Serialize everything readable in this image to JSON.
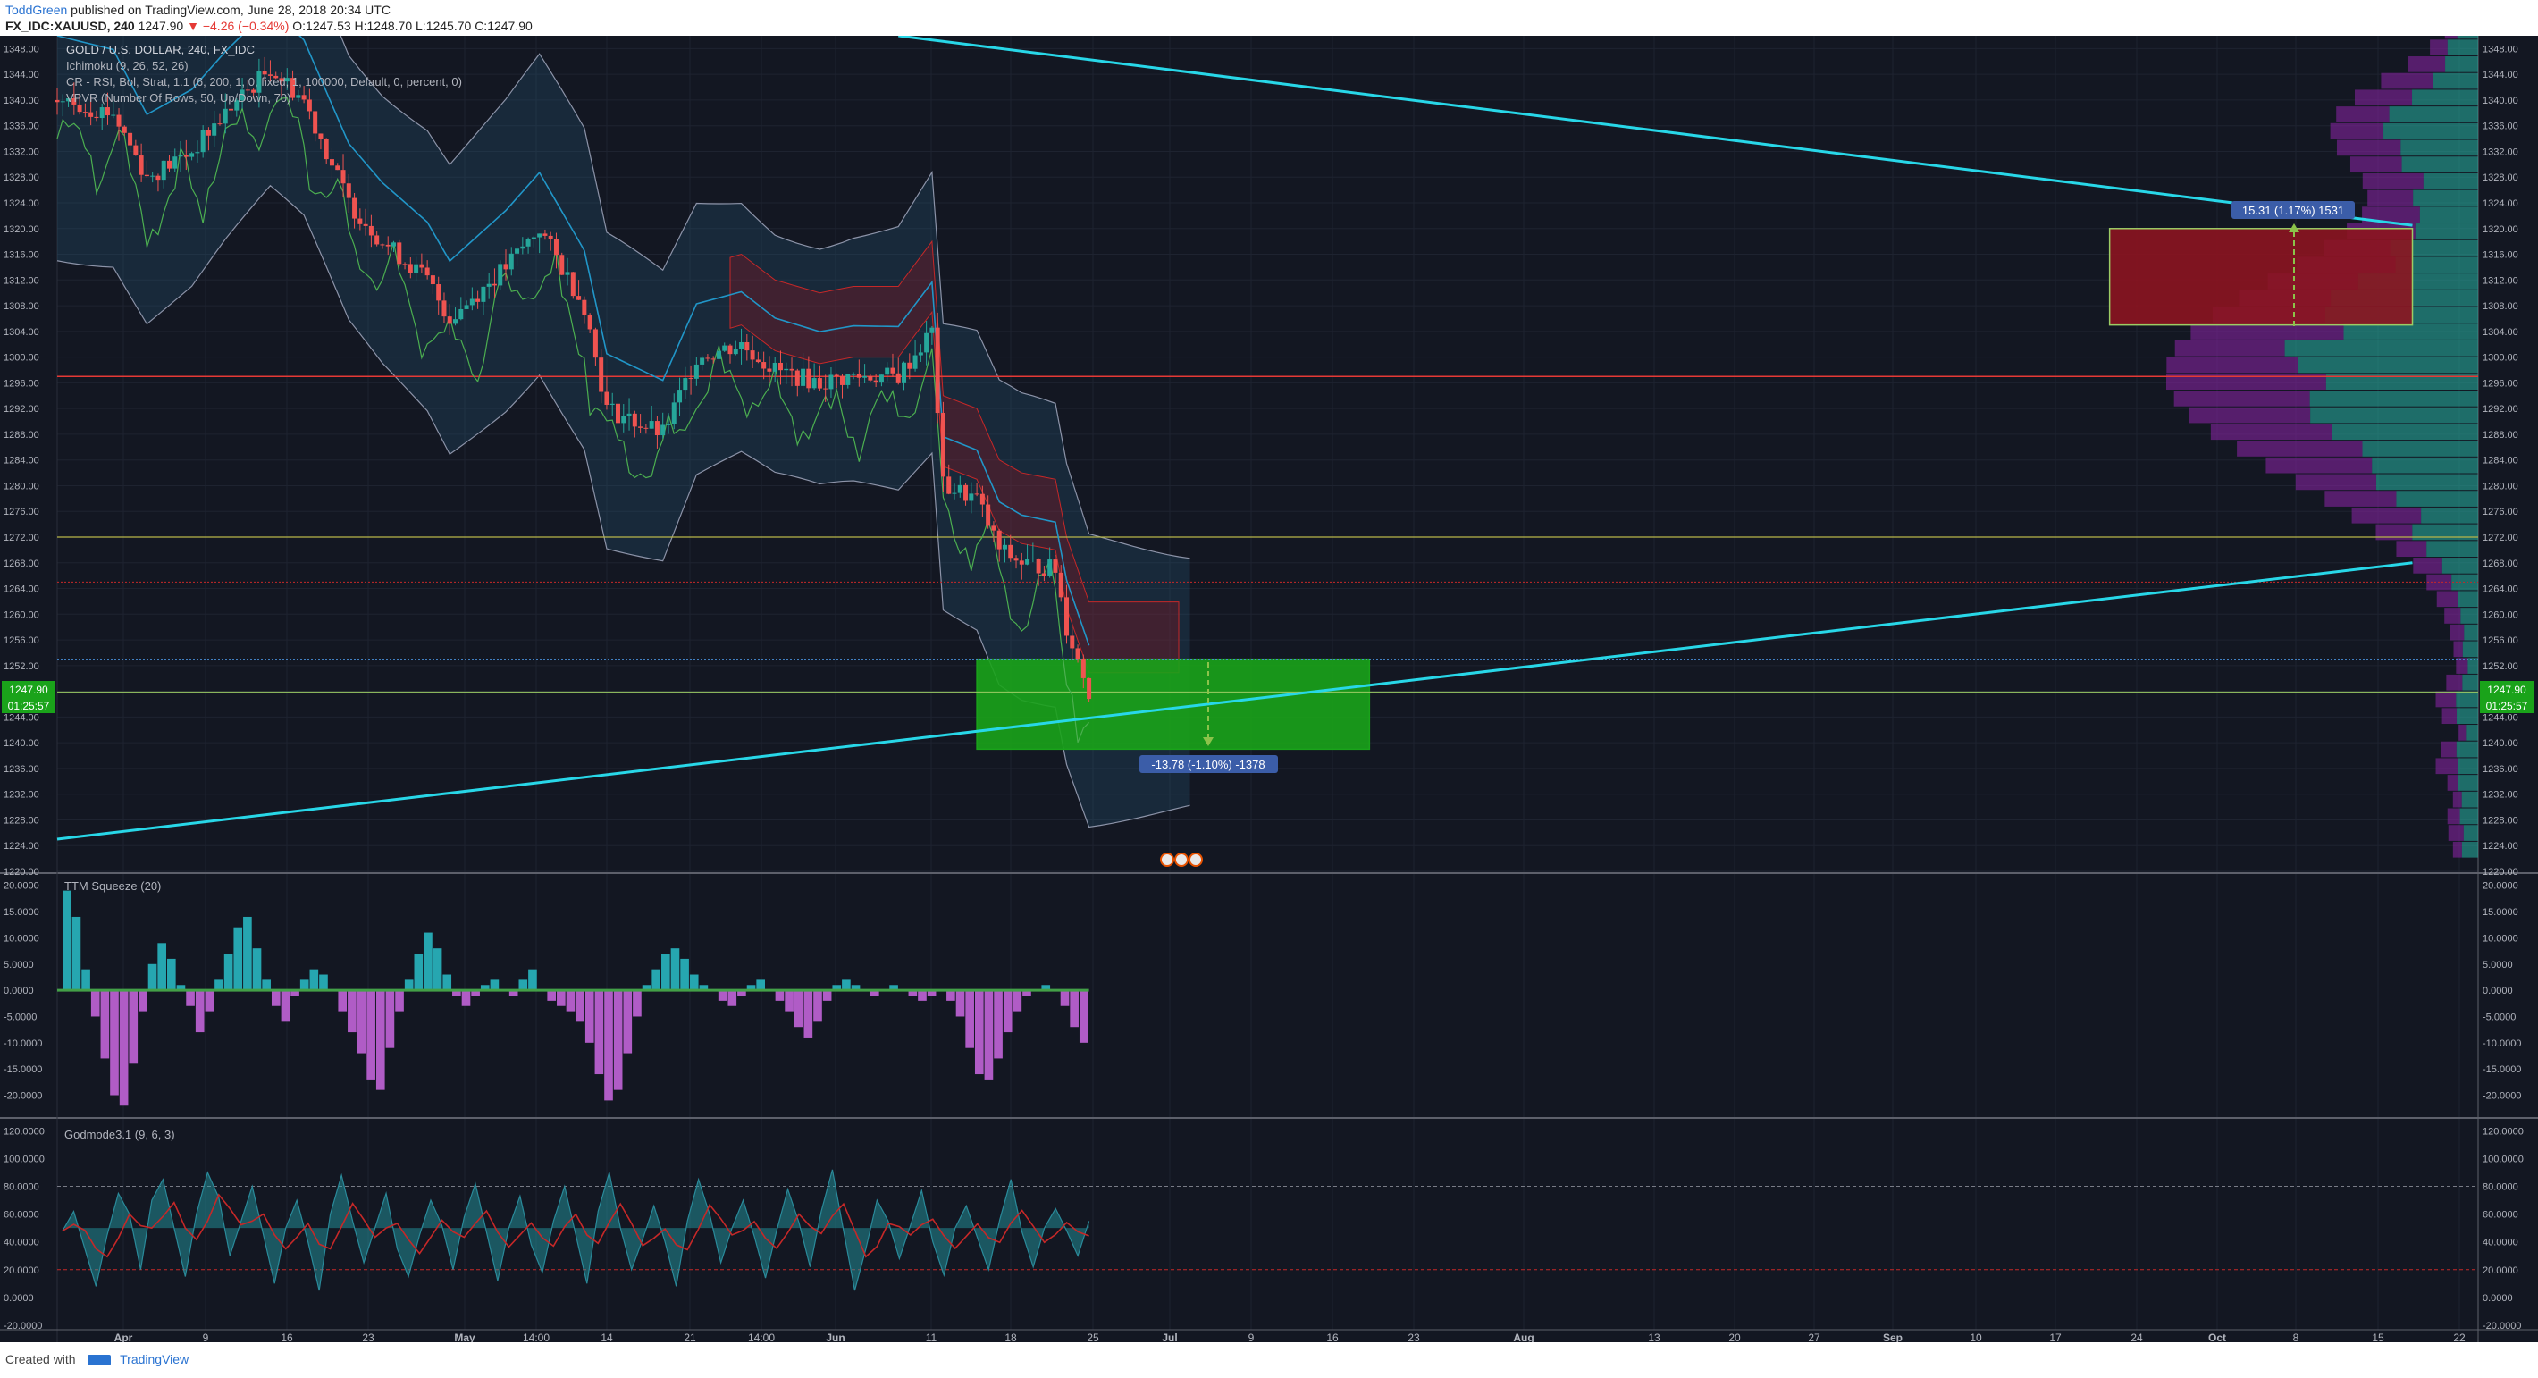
{
  "header": {
    "author": "ToddGreen",
    "published": "published on TradingView.com, June 28, 2018 20:34 UTC",
    "symbol": "FX_IDC:XAUUSD, 240",
    "last": "1247.90",
    "change": "▼ −4.26 (−0.34%)",
    "ohlc": "O:1247.53 H:1248.70 L:1245.70 C:1247.90"
  },
  "legend": {
    "line1": "GOLD / U.S. DOLLAR, 240, FX_IDC",
    "line2": "Ichimoku (9, 26, 52, 26)",
    "line3": "CR - RSI, Bol, Strat, 1.1 (6, 200, 1, 0, fixed, 1, 100000, Default, 0, percent, 0)",
    "line4": "VPVR (Number Of Rows, 50, Up/Down, 70)"
  },
  "annotations": {
    "up_measure": "15.31 (1.17%) 1531",
    "down_measure": "-13.78 (-1.10%) -1378",
    "price_tag": "1247.90",
    "countdown": "01:25:57"
  },
  "panes": {
    "squeeze_title": "TTM Squeeze (20)",
    "godmode_title": "Godmode3.1 (9, 6, 3)"
  },
  "footer": {
    "created": "Created with",
    "brand": "TradingView"
  },
  "colors": {
    "background": "#131722",
    "up_candle": "#26a69a",
    "down_candle": "#ef5350",
    "trendline": "#28d7e8",
    "target_zone": "#1aa31a",
    "resistance_zone": "#8c1420",
    "squeeze_up": "#26a6b0",
    "squeeze_down": "#b05cc6"
  },
  "chart_data": [
    {
      "type": "candlestick",
      "title": "GOLD / U.S. DOLLAR, 240, FX_IDC",
      "ylim": [
        1220,
        1350
      ],
      "y_ticks": [
        "1348.00",
        "1344.00",
        "1340.00",
        "1336.00",
        "1332.00",
        "1328.00",
        "1324.00",
        "1320.00",
        "1316.00",
        "1312.00",
        "1308.00",
        "1304.00",
        "1300.00",
        "1296.00",
        "1292.00",
        "1288.00",
        "1284.00",
        "1280.00",
        "1276.00",
        "1272.00",
        "1268.00",
        "1264.00",
        "1260.00",
        "1256.00",
        "1252.00",
        "1248.00",
        "1244.00",
        "1240.00",
        "1236.00",
        "1232.00",
        "1228.00",
        "1224.00",
        "1220.00"
      ],
      "x_ticks": [
        "Apr",
        "9",
        "16",
        "23",
        "May",
        "14:00",
        "14",
        "21",
        "14:00",
        "Jun",
        "11",
        "18",
        "25",
        "Jul",
        "9",
        "16",
        "23",
        "Aug",
        "13",
        "20",
        "27",
        "Sep",
        "10",
        "17",
        "24",
        "Oct",
        "8",
        "15",
        "22"
      ],
      "close_series": [
        {
          "date": "Mar 28",
          "close": 1340
        },
        {
          "date": "Apr 2",
          "close": 1338
        },
        {
          "date": "Apr 5",
          "close": 1328
        },
        {
          "date": "Apr 9",
          "close": 1332
        },
        {
          "date": "Apr 12",
          "close": 1338
        },
        {
          "date": "Apr 16",
          "close": 1345
        },
        {
          "date": "Apr 19",
          "close": 1340
        },
        {
          "date": "Apr 23",
          "close": 1324
        },
        {
          "date": "Apr 26",
          "close": 1318
        },
        {
          "date": "Apr 30",
          "close": 1312
        },
        {
          "date": "May 2",
          "close": 1306
        },
        {
          "date": "May 7",
          "close": 1314
        },
        {
          "date": "May 10",
          "close": 1320
        },
        {
          "date": "May 14",
          "close": 1308
        },
        {
          "date": "May 16",
          "close": 1292
        },
        {
          "date": "May 21",
          "close": 1288
        },
        {
          "date": "May 24",
          "close": 1300
        },
        {
          "date": "May 28",
          "close": 1302
        },
        {
          "date": "May 31",
          "close": 1298
        },
        {
          "date": "Jun 4",
          "close": 1296
        },
        {
          "date": "Jun 7",
          "close": 1297
        },
        {
          "date": "Jun 11",
          "close": 1297
        },
        {
          "date": "Jun 14",
          "close": 1304
        },
        {
          "date": "Jun 15",
          "close": 1280
        },
        {
          "date": "Jun 18",
          "close": 1278
        },
        {
          "date": "Jun 20",
          "close": 1270
        },
        {
          "date": "Jun 22",
          "close": 1268
        },
        {
          "date": "Jun 25",
          "close": 1267
        },
        {
          "date": "Jun 26",
          "close": 1258
        },
        {
          "date": "Jun 28",
          "close": 1247.9
        }
      ],
      "levels": [
        {
          "price": 1297,
          "label": "red horizontal"
        },
        {
          "price": 1272,
          "label": "yellow horizontal"
        },
        {
          "price": 1265,
          "label": "red dotted"
        },
        {
          "price": 1253,
          "label": "blue dotted"
        },
        {
          "price": 1247.9,
          "label": "current price"
        }
      ],
      "zones": [
        {
          "name": "target",
          "from": "Jun 18",
          "to": "Jul 23",
          "low": 1239,
          "high": 1253
        },
        {
          "name": "resistance",
          "from": "Sep 27",
          "to": "Oct 24",
          "low": 1305,
          "high": 1320
        }
      ],
      "trendlines": [
        {
          "name": "upper",
          "start": {
            "date": "Jun 11",
            "price": 1350
          },
          "end": {
            "date": "Oct 24",
            "price": 1320.5
          }
        },
        {
          "name": "lower",
          "start": {
            "date": "Mar 28",
            "price": 1225
          },
          "end": {
            "date": "Oct 24",
            "price": 1268
          }
        }
      ]
    },
    {
      "type": "bar",
      "title": "TTM Squeeze (20)",
      "ylim": [
        -24,
        22
      ],
      "y_ticks": [
        "20.0000",
        "15.0000",
        "10.0000",
        "5.0000",
        "0.0000",
        "-5.0000",
        "-10.0000",
        "-15.0000",
        "-20.0000"
      ],
      "values": [
        19,
        14,
        4,
        -5,
        -13,
        -20,
        -22,
        -14,
        -4,
        5,
        9,
        6,
        1,
        -3,
        -8,
        -4,
        2,
        7,
        12,
        14,
        8,
        2,
        -3,
        -6,
        -1,
        2,
        4,
        3,
        0,
        -4,
        -8,
        -12,
        -17,
        -19,
        -11,
        -4,
        2,
        7,
        11,
        8,
        3,
        -1,
        -3,
        -1,
        1,
        2,
        0,
        -1,
        2,
        4,
        0,
        -2,
        -3,
        -4,
        -6,
        -10,
        -16,
        -21,
        -19,
        -12,
        -5,
        1,
        4,
        7,
        8,
        6,
        3,
        1,
        0,
        -2,
        -3,
        -1,
        1,
        2,
        0,
        -2,
        -4,
        -7,
        -9,
        -6,
        -2,
        1,
        2,
        1,
        0,
        -1,
        0,
        1,
        0,
        -1,
        -2,
        -1,
        0,
        -2,
        -5,
        -11,
        -16,
        -17,
        -13,
        -8,
        -4,
        -1,
        0,
        1,
        0,
        -3,
        -7,
        -10
      ]
    },
    {
      "type": "area",
      "title": "Godmode3.1 (9, 6, 3)",
      "ylim": [
        -22,
        128
      ],
      "y_ticks": [
        "120.0000",
        "100.0000",
        "80.0000",
        "60.0000",
        "40.0000",
        "20.0000",
        "0.0000",
        "-20.0000"
      ],
      "reference_lines": [
        80,
        20
      ],
      "values": [
        48,
        62,
        35,
        8,
        45,
        75,
        60,
        20,
        70,
        85,
        50,
        15,
        60,
        90,
        72,
        30,
        55,
        80,
        45,
        10,
        50,
        70,
        40,
        5,
        60,
        88,
        55,
        25,
        50,
        75,
        35,
        15,
        45,
        70,
        52,
        20,
        58,
        82,
        47,
        12,
        50,
        73,
        38,
        18,
        55,
        80,
        45,
        10,
        62,
        90,
        50,
        20,
        42,
        66,
        40,
        8,
        55,
        85,
        60,
        25,
        50,
        70,
        44,
        14,
        48,
        78,
        54,
        22,
        62,
        92,
        48,
        5,
        35,
        70,
        55,
        28,
        52,
        77,
        40,
        16,
        50,
        66,
        43,
        20,
        56,
        85,
        47,
        22,
        50,
        64,
        48,
        30,
        55
      ]
    }
  ]
}
